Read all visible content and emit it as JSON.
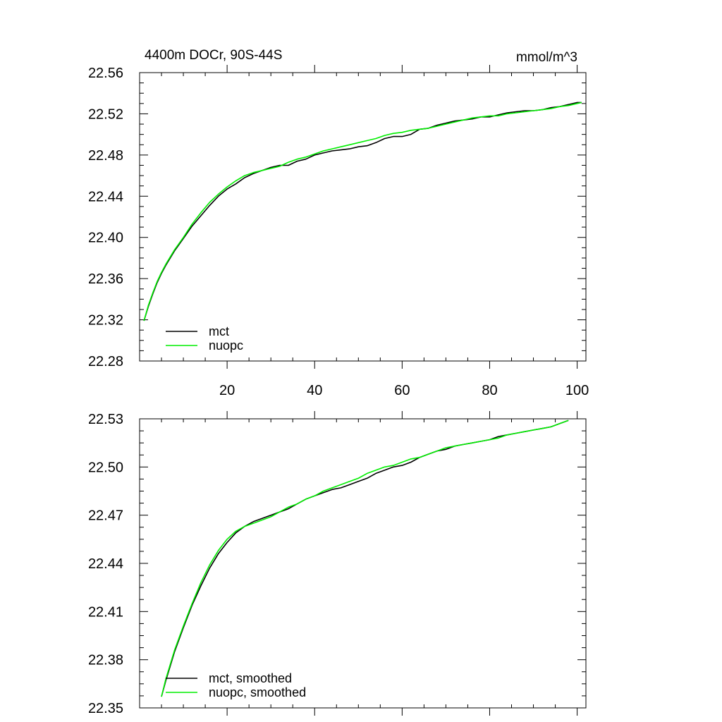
{
  "header": {
    "title": "4400m DOCr, 90S-44S",
    "units": "mmol/m^3"
  },
  "colors": {
    "mct": "#000000",
    "nuopc": "#00ee00",
    "axis": "#000000"
  },
  "chart_data": [
    {
      "type": "line",
      "title": "4400m DOCr, 90S-44S",
      "units_label": "mmol/m^3",
      "xlim": [
        0,
        102
      ],
      "ylim": [
        22.28,
        22.56
      ],
      "x_ticks": [
        20,
        40,
        60,
        80,
        100
      ],
      "x_tick_labels": [
        "20",
        "40",
        "60",
        "80",
        "100"
      ],
      "y_ticks": [
        22.28,
        22.32,
        22.36,
        22.4,
        22.44,
        22.48,
        22.52,
        22.56
      ],
      "y_tick_labels": [
        "22.28",
        "22.32",
        "22.36",
        "22.40",
        "22.44",
        "22.48",
        "22.52",
        "22.56"
      ],
      "grid": false,
      "legend": "bottom-left",
      "series": [
        {
          "name": "mct",
          "color": "#000000",
          "x": [
            1,
            2,
            3,
            4,
            5,
            6,
            8,
            10,
            12,
            14,
            16,
            18,
            20,
            22,
            24,
            26,
            28,
            30,
            32,
            34,
            36,
            38,
            40,
            42,
            44,
            46,
            48,
            50,
            52,
            54,
            56,
            58,
            60,
            62,
            64,
            66,
            68,
            70,
            72,
            74,
            76,
            78,
            80,
            82,
            84,
            86,
            88,
            90,
            92,
            94,
            96,
            98,
            100,
            101
          ],
          "values": [
            22.319,
            22.333,
            22.345,
            22.356,
            22.365,
            22.373,
            22.387,
            22.399,
            22.411,
            22.421,
            22.431,
            22.44,
            22.447,
            22.452,
            22.458,
            22.462,
            22.465,
            22.468,
            22.47,
            22.47,
            22.474,
            22.476,
            22.48,
            22.482,
            22.484,
            22.485,
            22.486,
            22.488,
            22.489,
            22.492,
            22.496,
            22.498,
            22.498,
            22.5,
            22.505,
            22.506,
            22.509,
            22.511,
            22.513,
            22.514,
            22.515,
            22.517,
            22.517,
            22.519,
            22.521,
            22.522,
            22.523,
            22.523,
            22.524,
            22.526,
            22.527,
            22.529,
            22.531,
            22.531
          ]
        },
        {
          "name": "nuopc",
          "color": "#00ee00",
          "x": [
            1,
            2,
            3,
            4,
            5,
            6,
            8,
            10,
            12,
            14,
            16,
            18,
            20,
            22,
            24,
            26,
            28,
            30,
            32,
            34,
            36,
            38,
            40,
            42,
            44,
            46,
            48,
            50,
            52,
            54,
            56,
            58,
            60,
            62,
            64,
            66,
            68,
            70,
            72,
            74,
            76,
            78,
            80,
            82,
            84,
            86,
            88,
            90,
            92,
            94,
            96,
            98,
            100,
            101
          ],
          "values": [
            22.319,
            22.334,
            22.346,
            22.357,
            22.366,
            22.374,
            22.388,
            22.4,
            22.413,
            22.424,
            22.434,
            22.442,
            22.449,
            22.455,
            22.46,
            22.463,
            22.465,
            22.467,
            22.469,
            22.473,
            22.476,
            22.478,
            22.481,
            22.484,
            22.486,
            22.488,
            22.49,
            22.492,
            22.494,
            22.496,
            22.499,
            22.501,
            22.502,
            22.504,
            22.505,
            22.506,
            22.508,
            22.51,
            22.512,
            22.514,
            22.516,
            22.517,
            22.518,
            22.518,
            22.52,
            22.521,
            22.522,
            22.523,
            22.524,
            22.525,
            22.527,
            22.528,
            22.53,
            22.531
          ]
        }
      ]
    },
    {
      "type": "line",
      "xlim": [
        0,
        102
      ],
      "ylim": [
        22.35,
        22.53
      ],
      "x_ticks": [
        20,
        40,
        60,
        80,
        100
      ],
      "y_ticks": [
        22.35,
        22.38,
        22.41,
        22.44,
        22.47,
        22.5,
        22.53
      ],
      "y_tick_labels": [
        "22.35",
        "22.38",
        "22.41",
        "22.44",
        "22.47",
        "22.50",
        "22.53"
      ],
      "grid": false,
      "legend": "bottom-left",
      "series": [
        {
          "name": "mct, smoothed",
          "color": "#000000",
          "x": [
            5,
            6,
            8,
            10,
            12,
            14,
            16,
            18,
            20,
            22,
            24,
            26,
            28,
            30,
            32,
            34,
            36,
            38,
            40,
            42,
            44,
            46,
            48,
            50,
            52,
            54,
            56,
            58,
            60,
            62,
            64,
            66,
            68,
            70,
            72,
            74,
            76,
            78,
            80,
            82,
            84,
            86,
            88,
            90,
            92,
            94,
            96,
            98
          ],
          "values": [
            22.357,
            22.367,
            22.385,
            22.4,
            22.414,
            22.426,
            22.437,
            22.446,
            22.453,
            22.459,
            22.463,
            22.466,
            22.468,
            22.47,
            22.472,
            22.474,
            22.477,
            22.48,
            22.482,
            22.484,
            22.486,
            22.487,
            22.489,
            22.491,
            22.493,
            22.496,
            22.498,
            22.5,
            22.501,
            22.503,
            22.506,
            22.508,
            22.51,
            22.511,
            22.513,
            22.514,
            22.515,
            22.516,
            22.517,
            22.519,
            22.52,
            22.521,
            22.522,
            22.523,
            22.524,
            22.525,
            22.527,
            22.529
          ]
        },
        {
          "name": "nuopc, smoothed",
          "color": "#00ee00",
          "x": [
            5,
            6,
            8,
            10,
            12,
            14,
            16,
            18,
            20,
            22,
            24,
            26,
            28,
            30,
            32,
            34,
            36,
            38,
            40,
            42,
            44,
            46,
            48,
            50,
            52,
            54,
            56,
            58,
            60,
            62,
            64,
            66,
            68,
            70,
            72,
            74,
            76,
            78,
            80,
            82,
            84,
            86,
            88,
            90,
            92,
            94,
            96,
            98
          ],
          "values": [
            22.357,
            22.368,
            22.386,
            22.401,
            22.415,
            22.428,
            22.439,
            22.448,
            22.455,
            22.46,
            22.463,
            22.465,
            22.467,
            22.469,
            22.472,
            22.475,
            22.477,
            22.48,
            22.482,
            22.485,
            22.487,
            22.489,
            22.491,
            22.493,
            22.496,
            22.498,
            22.5,
            22.501,
            22.503,
            22.505,
            22.506,
            22.508,
            22.51,
            22.512,
            22.513,
            22.514,
            22.515,
            22.516,
            22.517,
            22.518,
            22.52,
            22.521,
            22.522,
            22.523,
            22.524,
            22.525,
            22.527,
            22.529
          ]
        }
      ]
    }
  ]
}
